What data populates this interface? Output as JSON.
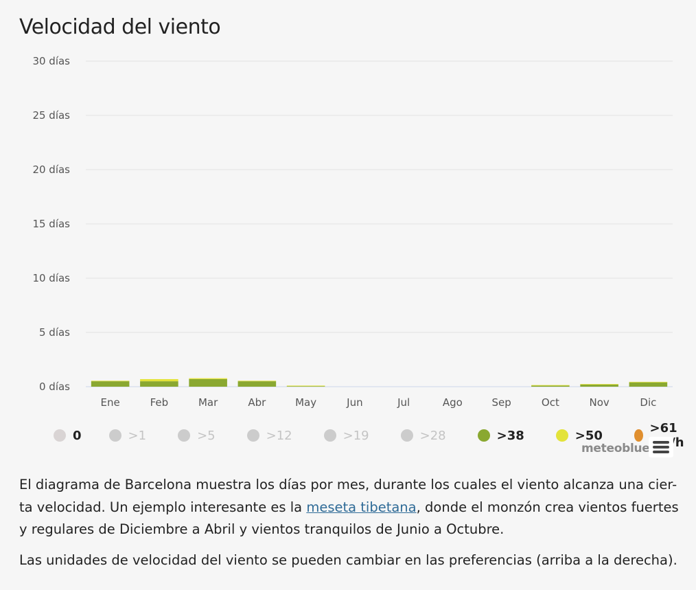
{
  "title": "Velocidad del viento",
  "chart_data": {
    "type": "bar",
    "stacked": true,
    "categories": [
      "Ene",
      "Feb",
      "Mar",
      "Abr",
      "May",
      "Jun",
      "Jul",
      "Ago",
      "Sep",
      "Oct",
      "Nov",
      "Dic"
    ],
    "y_ticks": [
      "0 días",
      "5 días",
      "10 días",
      "15 días",
      "20 días",
      "25 días",
      "30 días"
    ],
    "ylim": [
      0,
      30
    ],
    "grid": true,
    "legend_position": "bottom",
    "series": [
      {
        "name": ">38",
        "color": "#8aa831",
        "values": [
          0.5,
          0.5,
          0.7,
          0.5,
          0.05,
          0,
          0,
          0,
          0,
          0.1,
          0.2,
          0.4
        ]
      },
      {
        "name": ">50",
        "color": "#e3e33a",
        "values": [
          0.05,
          0.2,
          0.08,
          0.05,
          0.05,
          0,
          0,
          0,
          0,
          0.05,
          0.05,
          0.05
        ]
      }
    ]
  },
  "legend": [
    {
      "label": "0",
      "color": "#d9d4d4",
      "state": "on"
    },
    {
      "label": ">1",
      "color": "#cccccc",
      "state": "off"
    },
    {
      "label": ">5",
      "color": "#cccccc",
      "state": "off"
    },
    {
      "label": ">12",
      "color": "#cccccc",
      "state": "off"
    },
    {
      "label": ">19",
      "color": "#cccccc",
      "state": "off"
    },
    {
      "label": ">28",
      "color": "#cccccc",
      "state": "off"
    },
    {
      "label": ">38",
      "color": "#8aa831",
      "state": "on"
    },
    {
      "label": ">50",
      "color": "#e3e33a",
      "state": "on"
    },
    {
      "label": ">61 km/h",
      "color": "#e08f2f",
      "state": "on"
    }
  ],
  "credit": "meteoblue",
  "menu_icon": "hamburger-menu-icon",
  "description": {
    "part1": "El diagrama de Barcelona muestra los días por mes, durante los cuales el viento alcanza una cier-ta velocidad. Un ejemplo interesante es la ",
    "link": "meseta tibetana",
    "part2": ", donde el monzón crea vientos fuertes y regulares de Diciembre a Abril y vientos tranquilos de Junio a Octubre.",
    "units_note": "Las unidades de velocidad del viento se pueden cambiar en las preferencias (arriba a la derecha)."
  }
}
